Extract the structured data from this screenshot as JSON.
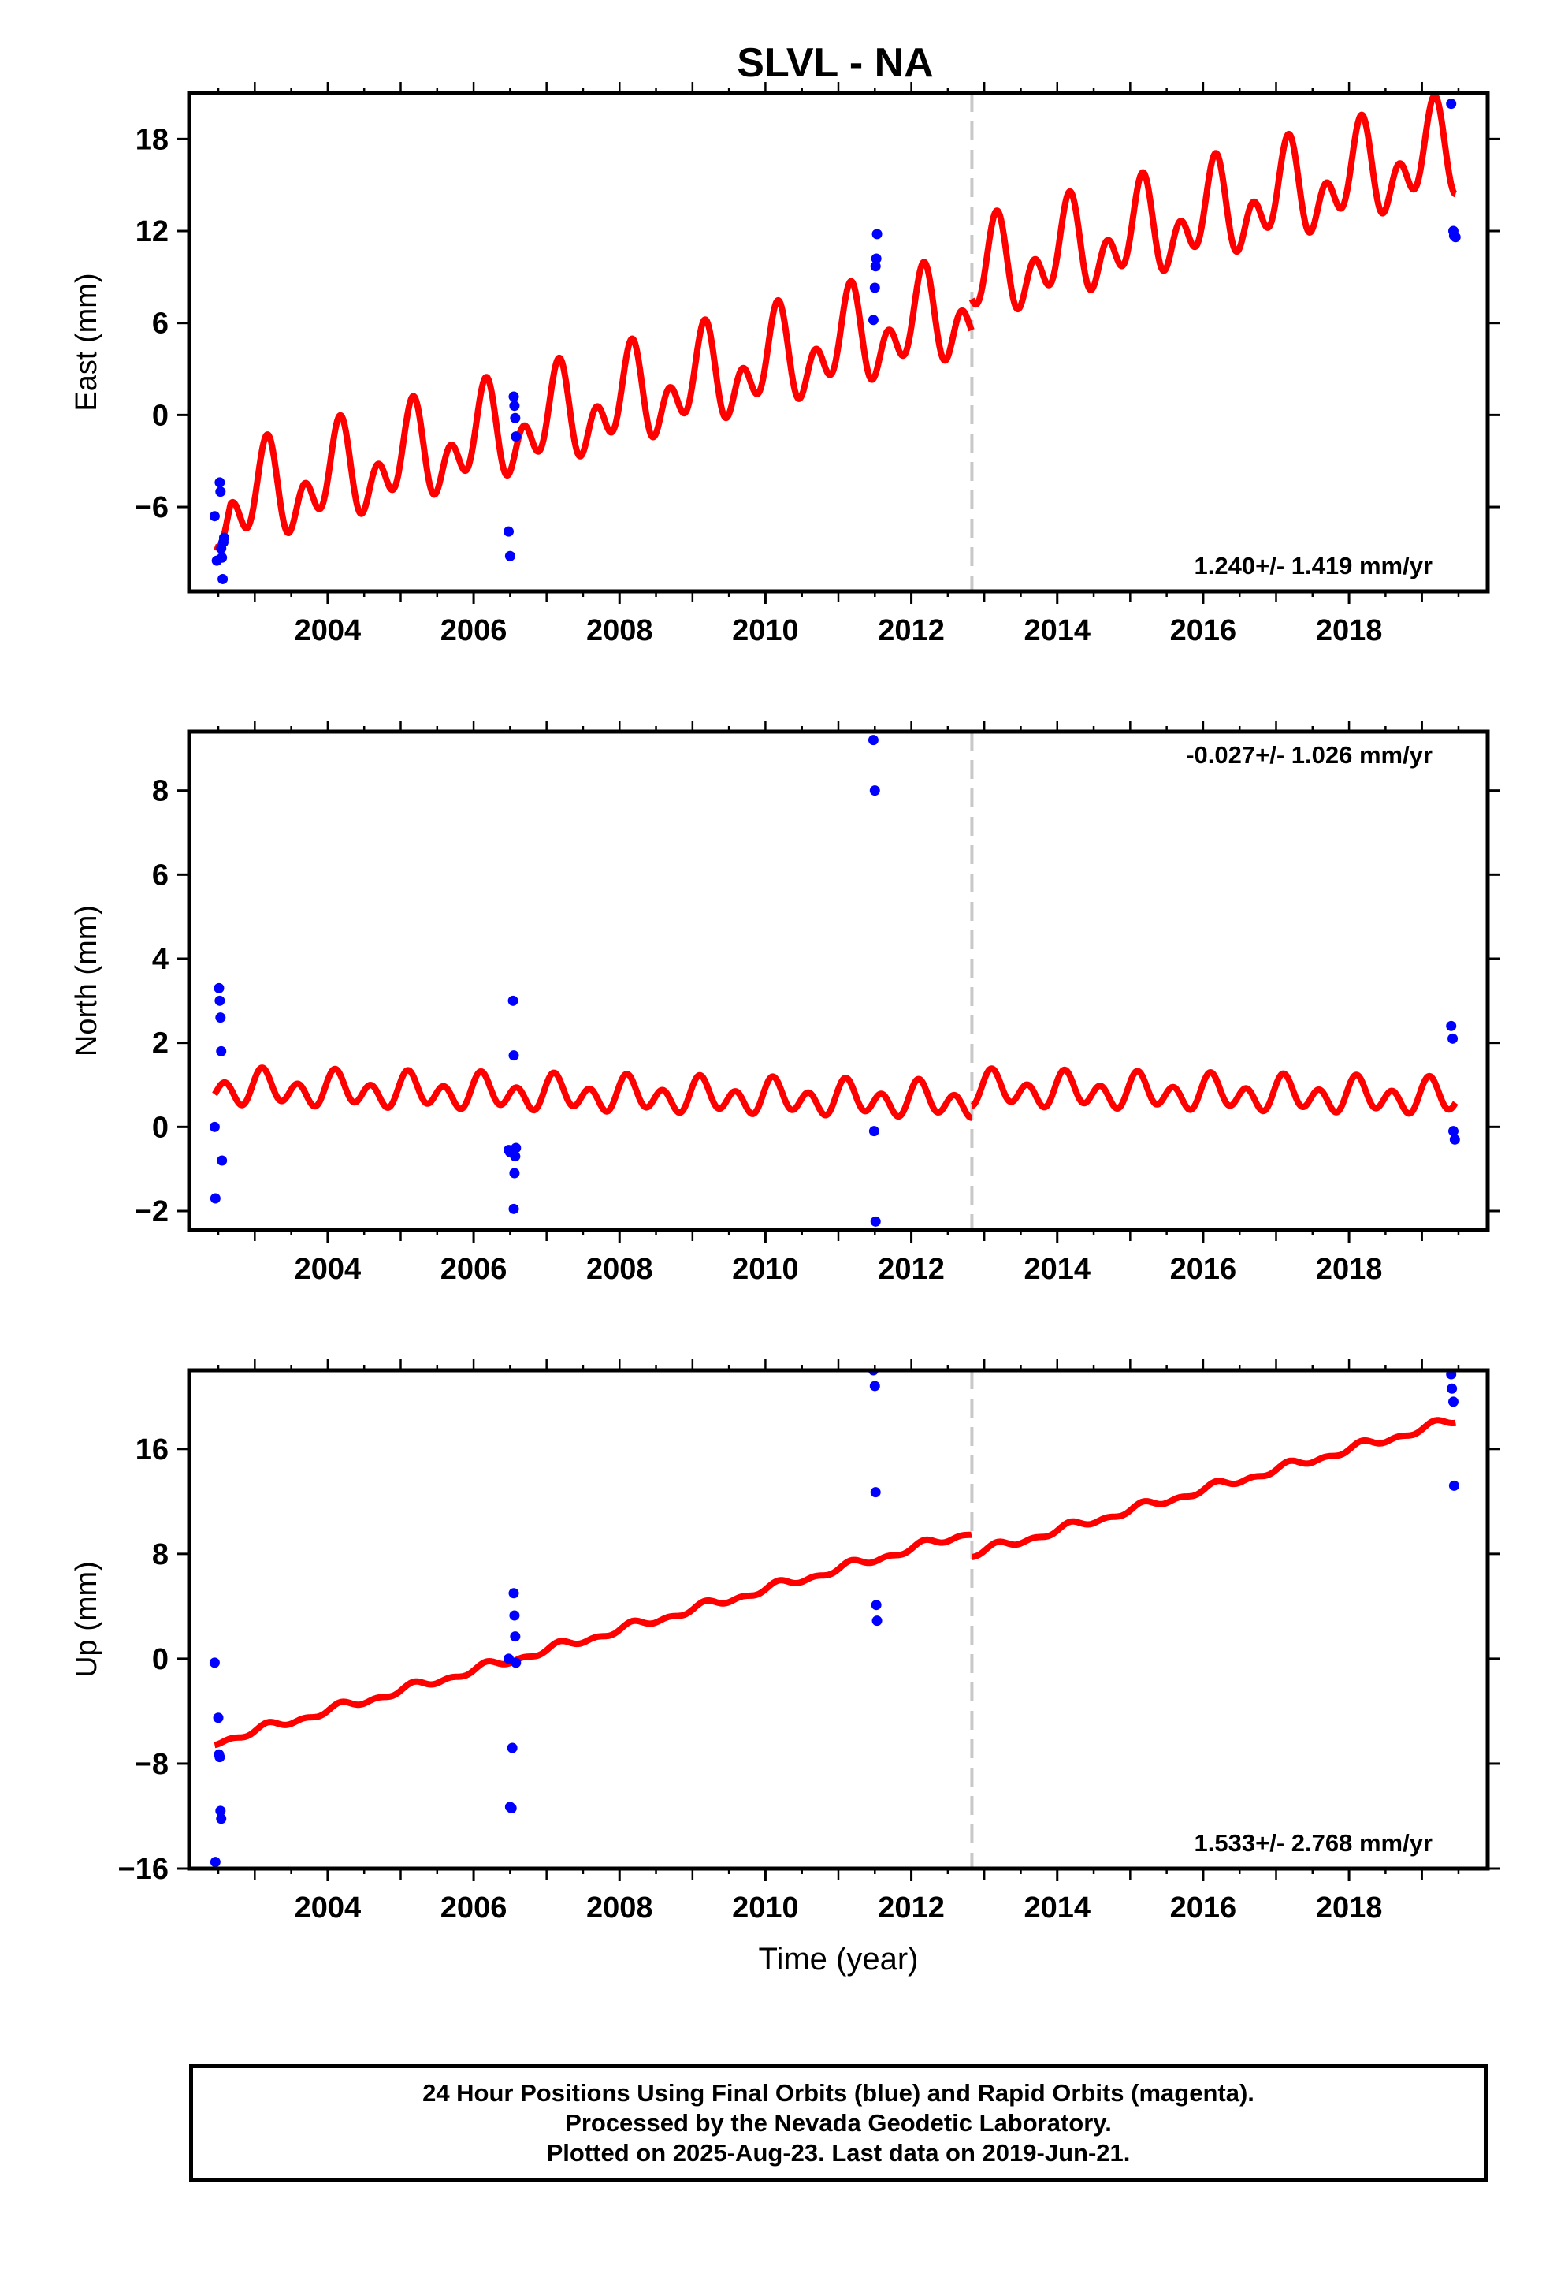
{
  "title": "SLVL - NA",
  "colors": {
    "model": "#ff0000",
    "final_orbits": "#0000ff",
    "break_line": "#c8c8c8",
    "axes": "#000000"
  },
  "footer": {
    "line1": "24 Hour Positions Using Final Orbits (blue) and Rapid Orbits (magenta).",
    "line2": "Processed by the Nevada Geodetic Laboratory.",
    "line3": "Plotted on 2025-Aug-23. Last data on 2019-Jun-21."
  },
  "chart_data": [
    {
      "type": "scatter",
      "component": "east",
      "ylabel": "East (mm)",
      "xlabel": "",
      "xlim": [
        2002.1,
        2019.9
      ],
      "ylim": [
        -11.5,
        21.0
      ],
      "xticks": [
        2004,
        2006,
        2008,
        2010,
        2012,
        2014,
        2016,
        2018
      ],
      "yticks": [
        -6,
        0,
        6,
        12,
        18
      ],
      "rate_label": "1.240+/- 1.419 mm/yr",
      "rate_position": "bottom-right",
      "break_year": 2012.83,
      "points": [
        [
          2002.45,
          -6.6
        ],
        [
          2002.48,
          -9.5
        ],
        [
          2002.52,
          -4.4
        ],
        [
          2002.53,
          -5.0
        ],
        [
          2002.54,
          -8.7
        ],
        [
          2002.55,
          -9.3
        ],
        [
          2002.56,
          -10.7
        ],
        [
          2002.57,
          -8.3
        ],
        [
          2002.58,
          -8.0
        ],
        [
          2006.48,
          -7.6
        ],
        [
          2006.5,
          -9.2
        ],
        [
          2006.55,
          1.2
        ],
        [
          2006.56,
          0.6
        ],
        [
          2006.57,
          -0.2
        ],
        [
          2006.58,
          -1.4
        ],
        [
          2011.48,
          6.2
        ],
        [
          2011.5,
          8.3
        ],
        [
          2011.51,
          9.7
        ],
        [
          2011.52,
          10.2
        ],
        [
          2011.53,
          11.8
        ],
        [
          2019.4,
          20.3
        ],
        [
          2019.43,
          12.0
        ],
        [
          2019.44,
          11.7
        ],
        [
          2019.46,
          11.6
        ]
      ],
      "model": {
        "x_start": 2002.45,
        "x_end": 2019.46,
        "segments": [
          {
            "from": 2002.45,
            "to": 2012.83,
            "offset": -6.1,
            "rate": 1.25
          },
          {
            "from": 2012.83,
            "to": 2019.46,
            "offset": -4.0,
            "rate": 1.25
          }
        ],
        "center_year": 2002.5,
        "annual_sin": 1.5,
        "annual_cos": 1.3,
        "semiannual_sin": 1.6,
        "semiannual_cos": -1.3,
        "start_ramp_from": -8.6,
        "start_ramp_len": 0.22
      }
    },
    {
      "type": "scatter",
      "component": "north",
      "ylabel": "North (mm)",
      "xlabel": "",
      "xlim": [
        2002.1,
        2019.9
      ],
      "ylim": [
        -2.45,
        9.4
      ],
      "xticks": [
        2004,
        2006,
        2008,
        2010,
        2012,
        2014,
        2016,
        2018
      ],
      "yticks": [
        -2,
        0,
        2,
        4,
        6,
        8
      ],
      "rate_label": "-0.027+/- 1.026 mm/yr",
      "rate_position": "top-right",
      "break_year": 2012.83,
      "points": [
        [
          2002.45,
          0.0
        ],
        [
          2002.46,
          -1.7
        ],
        [
          2002.51,
          3.3
        ],
        [
          2002.52,
          3.0
        ],
        [
          2002.53,
          2.6
        ],
        [
          2002.54,
          1.8
        ],
        [
          2002.55,
          -0.8
        ],
        [
          2006.48,
          -0.55
        ],
        [
          2006.5,
          -0.6
        ],
        [
          2006.54,
          3.0
        ],
        [
          2006.55,
          1.7
        ],
        [
          2006.56,
          -1.1
        ],
        [
          2006.57,
          -0.7
        ],
        [
          2006.58,
          -0.5
        ],
        [
          2006.55,
          -1.95
        ],
        [
          2011.48,
          9.2
        ],
        [
          2011.5,
          8.0
        ],
        [
          2011.49,
          -0.1
        ],
        [
          2011.51,
          -2.25
        ],
        [
          2019.4,
          2.4
        ],
        [
          2019.42,
          2.1
        ],
        [
          2019.43,
          -0.1
        ],
        [
          2019.45,
          -0.3
        ]
      ],
      "model": {
        "x_start": 2002.45,
        "x_end": 2019.46,
        "segments": [
          {
            "from": 2002.45,
            "to": 2012.83,
            "offset": 0.92,
            "rate": -0.03
          },
          {
            "from": 2012.83,
            "to": 2019.46,
            "offset": 1.2,
            "rate": -0.03
          }
        ],
        "center_year": 2002.5,
        "annual_sin": 0.15,
        "annual_cos": 0.12,
        "semiannual_sin": 0.3,
        "semiannual_cos": 0.12,
        "start_ramp_from": 0.92,
        "start_ramp_len": 0.0
      }
    },
    {
      "type": "scatter",
      "component": "up",
      "ylabel": "Up (mm)",
      "xlabel": "Time (year)",
      "xlim": [
        2002.1,
        2019.9
      ],
      "ylim": [
        -16.0,
        22.0
      ],
      "xticks": [
        2004,
        2006,
        2008,
        2010,
        2012,
        2014,
        2016,
        2018
      ],
      "yticks": [
        -16,
        -8,
        0,
        8,
        16
      ],
      "rate_label": "1.533+/- 2.768 mm/yr",
      "rate_position": "bottom-right",
      "break_year": 2012.83,
      "points": [
        [
          2002.45,
          -0.3
        ],
        [
          2002.46,
          -15.5
        ],
        [
          2002.5,
          -4.5
        ],
        [
          2002.51,
          -7.3
        ],
        [
          2002.52,
          -7.5
        ],
        [
          2002.53,
          -11.6
        ],
        [
          2002.54,
          -12.2
        ],
        [
          2006.48,
          0.0
        ],
        [
          2006.5,
          -11.3
        ],
        [
          2006.52,
          -11.4
        ],
        [
          2006.53,
          -6.8
        ],
        [
          2006.55,
          5.0
        ],
        [
          2006.56,
          3.3
        ],
        [
          2006.57,
          1.7
        ],
        [
          2006.58,
          -0.3
        ],
        [
          2011.48,
          22.0
        ],
        [
          2011.5,
          20.8
        ],
        [
          2011.51,
          12.7
        ],
        [
          2011.52,
          4.1
        ],
        [
          2011.53,
          2.9
        ],
        [
          2019.4,
          21.7
        ],
        [
          2019.41,
          20.6
        ],
        [
          2019.43,
          19.6
        ],
        [
          2019.44,
          13.2
        ]
      ],
      "model": {
        "x_start": 2002.45,
        "x_end": 2019.46,
        "segments": [
          {
            "from": 2002.45,
            "to": 2012.83,
            "offset": -6.3,
            "rate": 1.545
          },
          {
            "from": 2012.83,
            "to": 2019.46,
            "offset": -8.0,
            "rate": 1.545
          }
        ],
        "center_year": 2002.5,
        "annual_sin": 0.2,
        "annual_cos": 0.1,
        "semiannual_sin": 0.15,
        "semiannual_cos": -0.1,
        "start_ramp_from": -6.3,
        "start_ramp_len": 0.0
      }
    }
  ]
}
